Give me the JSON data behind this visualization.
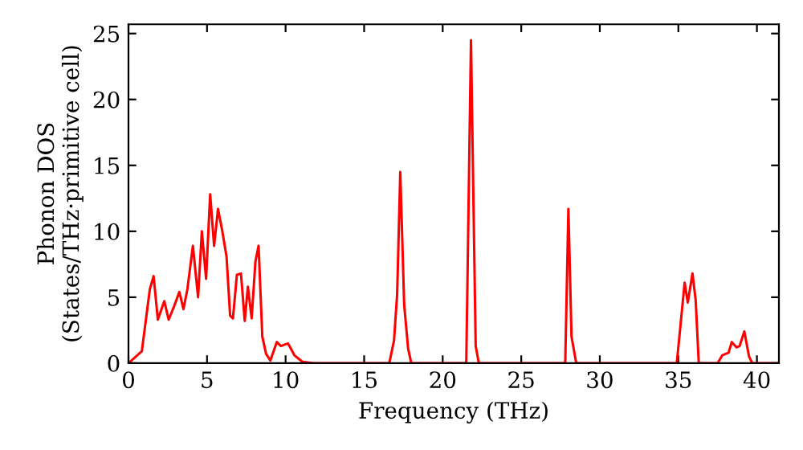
{
  "chart_data": {
    "type": "line",
    "xlabel": "Frequency (THz)",
    "ylabel": "Phonon DOS\n(States/THz·primitive cell)",
    "xlim": [
      0,
      41.4
    ],
    "ylim": [
      0,
      25.7
    ],
    "xticks": [
      0,
      5,
      10,
      15,
      20,
      25,
      30,
      35,
      40
    ],
    "yticks": [
      0,
      5,
      10,
      15,
      20,
      25
    ],
    "grid": false,
    "legend": false,
    "marker": "none",
    "line_style": "solid",
    "series": [
      {
        "color": "#ff0000",
        "x": [
          0,
          0.85,
          1.36,
          1.6,
          1.87,
          2.28,
          2.56,
          2.9,
          3.24,
          3.5,
          3.75,
          4.1,
          4.43,
          4.67,
          4.94,
          5.2,
          5.45,
          5.7,
          5.96,
          6.24,
          6.47,
          6.65,
          6.9,
          7.16,
          7.4,
          7.6,
          7.84,
          8.08,
          8.28,
          8.52,
          8.76,
          9.03,
          9.44,
          9.7,
          10.15,
          10.56,
          11.07,
          11.8,
          16.6,
          16.9,
          17.1,
          17.3,
          17.55,
          17.8,
          18.0,
          21.5,
          21.8,
          22.1,
          22.3,
          27.8,
          28.0,
          28.2,
          28.5,
          34.9,
          35.4,
          35.6,
          35.9,
          36.1,
          36.3,
          37.5,
          37.8,
          38.2,
          38.4,
          38.7,
          38.9,
          39.2,
          39.5,
          39.7,
          41.4
        ],
        "values": [
          0,
          0.9,
          5.6,
          6.6,
          3.3,
          4.7,
          3.3,
          4.3,
          5.4,
          4.1,
          5.6,
          8.9,
          5.0,
          10.0,
          6.4,
          12.8,
          8.9,
          11.7,
          10.1,
          8.1,
          3.6,
          3.4,
          6.7,
          6.8,
          3.2,
          5.8,
          3.4,
          7.7,
          8.9,
          2.0,
          0.7,
          0.2,
          1.6,
          1.3,
          1.5,
          0.6,
          0.1,
          0,
          0,
          1.7,
          5.2,
          14.5,
          4.4,
          1.1,
          0,
          0,
          24.5,
          1.3,
          0,
          0,
          11.7,
          2.0,
          0,
          0,
          6.1,
          4.6,
          6.8,
          4.8,
          0,
          0,
          0.6,
          0.8,
          1.6,
          1.2,
          1.3,
          2.4,
          0.5,
          0,
          0
        ]
      }
    ]
  }
}
